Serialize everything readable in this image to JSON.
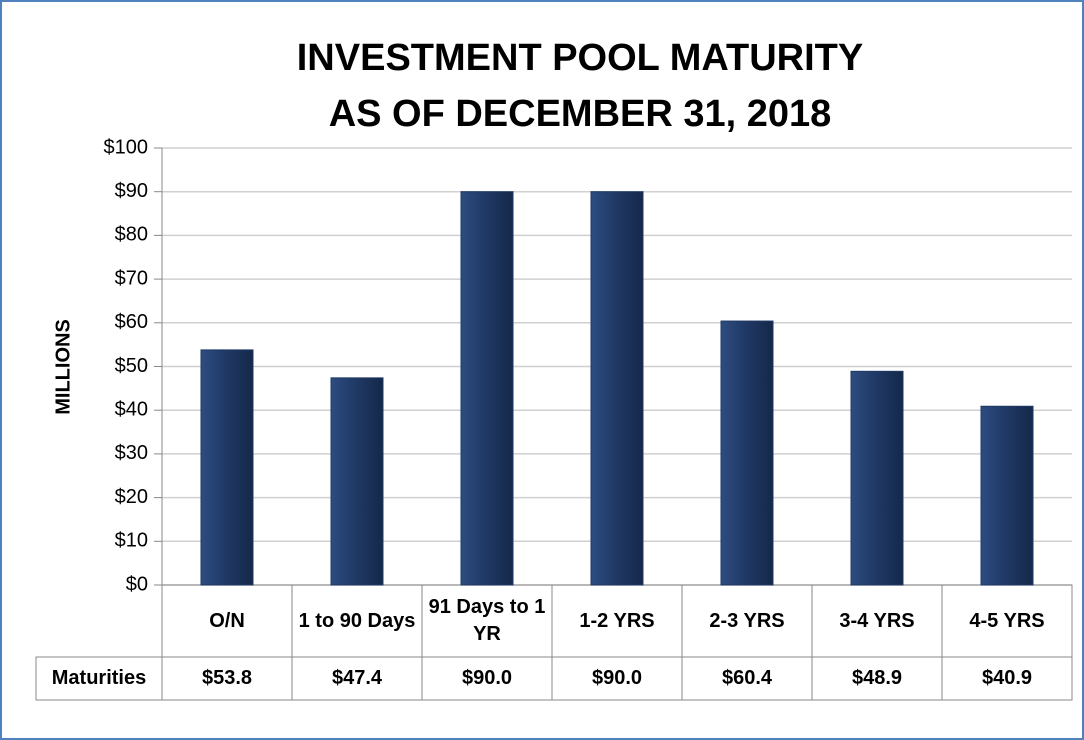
{
  "chart_data": {
    "type": "bar",
    "title": "INVESTMENT POOL MATURITY",
    "subtitle": "AS OF DECEMBER 31, 2018",
    "y_label": "MILLIONS",
    "categories": [
      "O/N",
      "1 to 90 Days",
      "91 Days to 1 YR",
      "1-2 YRS",
      "2-3 YRS",
      "3-4 YRS",
      "4-5 YRS"
    ],
    "series": [
      {
        "name": "Maturities",
        "color": "#1f3864",
        "values": [
          53.8,
          47.4,
          90.0,
          90.0,
          60.4,
          48.9,
          40.9
        ],
        "value_labels": [
          "$53.8",
          "$47.4",
          "$90.0",
          "$90.0",
          "$60.4",
          "$48.9",
          "$40.9"
        ]
      }
    ],
    "ylim": [
      0,
      100
    ],
    "yticks": [
      {
        "value": 0,
        "label": "$0"
      },
      {
        "value": 10,
        "label": "$10"
      },
      {
        "value": 20,
        "label": "$20"
      },
      {
        "value": 30,
        "label": "$30"
      },
      {
        "value": 40,
        "label": "$40"
      },
      {
        "value": 50,
        "label": "$50"
      },
      {
        "value": 60,
        "label": "$60"
      },
      {
        "value": 70,
        "label": "$70"
      },
      {
        "value": 80,
        "label": "$80"
      },
      {
        "value": 90,
        "label": "$90"
      },
      {
        "value": 100,
        "label": "$100"
      }
    ],
    "grid": true
  }
}
